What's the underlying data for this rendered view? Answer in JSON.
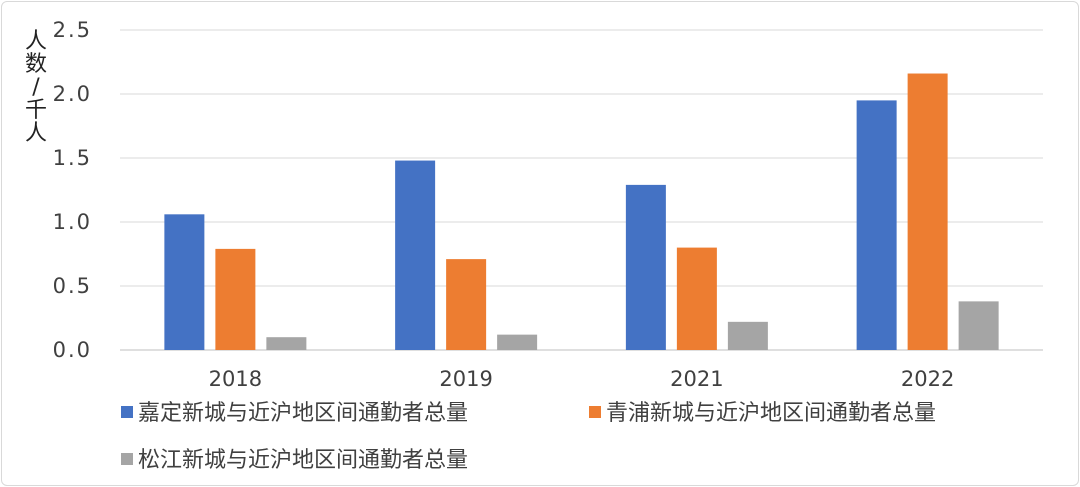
{
  "chart_data": {
    "type": "bar",
    "ylabel": "人数/千人",
    "ylabel_chars": [
      "人",
      "数",
      "/",
      "千",
      "人"
    ],
    "ylim": [
      0,
      2.5
    ],
    "yticks": [
      "0.0",
      "0.5",
      "1.0",
      "1.5",
      "2.0",
      "2.5"
    ],
    "categories": [
      "2018",
      "2019",
      "2021",
      "2022"
    ],
    "series": [
      {
        "name": "嘉定新城与近沪地区间通勤者总量",
        "color": "#4472c4",
        "values": [
          1.06,
          1.48,
          1.29,
          1.95
        ]
      },
      {
        "name": "青浦新城与近沪地区间通勤者总量",
        "color": "#ed7d31",
        "values": [
          0.79,
          0.71,
          0.8,
          2.16
        ]
      },
      {
        "name": "松江新城与近沪地区间通勤者总量",
        "color": "#a5a5a5",
        "values": [
          0.1,
          0.12,
          0.22,
          0.38
        ]
      }
    ],
    "grid": true,
    "legend": "bottom"
  }
}
